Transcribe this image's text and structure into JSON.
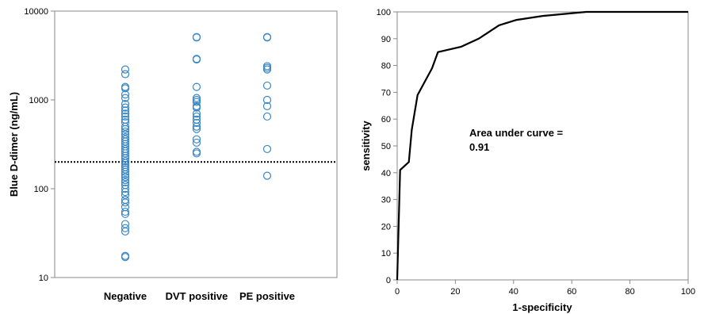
{
  "chart_data": [
    {
      "type": "scatter",
      "ylabel": "Blue D-dimer (ng/mL)",
      "yscale": "log",
      "ylim": [
        10,
        10000
      ],
      "yticks": [
        "10",
        "100",
        "1000",
        "10000"
      ],
      "categories": [
        "Negative",
        "DVT positive",
        "PE positive"
      ],
      "grid": false,
      "marker_color": "#3a87c8",
      "cutoff_value": 200,
      "series": [
        {
          "category": "Negative",
          "values": [
            2200,
            1950,
            1400,
            1350,
            1150,
            1050,
            900,
            820,
            760,
            700,
            650,
            600,
            560,
            500,
            470,
            440,
            410,
            380,
            360,
            340,
            320,
            300,
            280,
            265,
            250,
            235,
            220,
            205,
            195,
            185,
            175,
            165,
            155,
            145,
            135,
            125,
            118,
            110,
            100,
            92,
            85,
            75,
            70,
            62,
            55,
            52,
            40,
            36,
            33,
            17.5,
            17
          ]
        },
        {
          "category": "DVT positive",
          "values": [
            5100,
            5050,
            2900,
            2850,
            1400,
            1050,
            1000,
            950,
            850,
            820,
            700,
            650,
            600,
            550,
            500,
            470,
            360,
            330,
            260,
            250
          ]
        },
        {
          "category": "PE positive",
          "values": [
            5100,
            5050,
            2400,
            2300,
            2200,
            1450,
            1000,
            850,
            650,
            280,
            140
          ]
        }
      ]
    },
    {
      "type": "line",
      "xlabel": "1-specificity",
      "ylabel": "sensitivity",
      "xlim": [
        0,
        100
      ],
      "ylim": [
        0,
        100
      ],
      "xticks": [
        "0",
        "20",
        "40",
        "60",
        "80",
        "100"
      ],
      "yticks": [
        "0",
        "10",
        "20",
        "30",
        "40",
        "50",
        "60",
        "70",
        "80",
        "90",
        "100"
      ],
      "grid": false,
      "line_color": "#000000",
      "annotation_line1": "Area under curve =",
      "annotation_line2": "0.91",
      "x": [
        0,
        1,
        4,
        5,
        7,
        12,
        14,
        22,
        28,
        35,
        41,
        50,
        65,
        100
      ],
      "y": [
        0,
        41,
        44,
        56,
        69,
        79,
        85,
        87,
        90,
        95,
        97,
        98.5,
        100,
        100
      ]
    }
  ]
}
